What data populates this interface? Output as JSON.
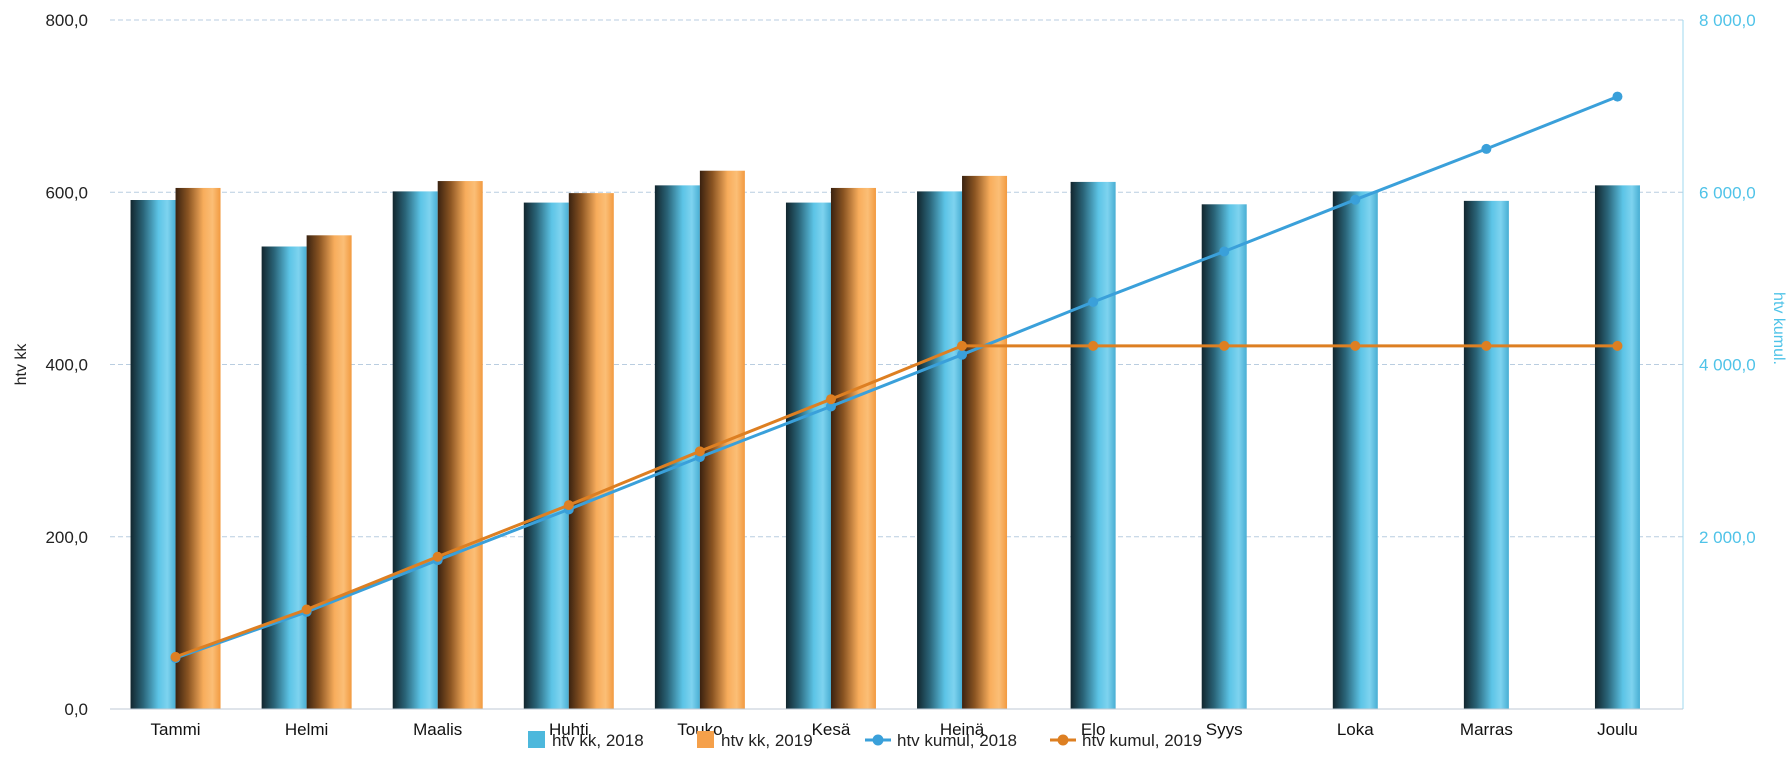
{
  "chart_data": {
    "type": "bar",
    "categories": [
      "Tammi",
      "Helmi",
      "Maalis",
      "Huhti",
      "Touko",
      "Kesä",
      "Heinä",
      "Elo",
      "Syys",
      "Loka",
      "Marras",
      "Joulu"
    ],
    "y_left": {
      "label": "htv kk",
      "ylim": [
        0,
        800
      ],
      "ticks": [
        0,
        200,
        400,
        600,
        800
      ],
      "tick_labels": [
        "0,0",
        "200,0",
        "400,0",
        "600,0",
        "800,0"
      ]
    },
    "y_right": {
      "label": "htv kumul.",
      "ylim": [
        0,
        8000
      ],
      "ticks": [
        2000,
        4000,
        6000,
        8000
      ],
      "tick_labels": [
        "2 000,0",
        "4 000,0",
        "6 000,0",
        "8 000,0"
      ]
    },
    "series": [
      {
        "name": "htv kk, 2018",
        "type": "bar",
        "axis": "left",
        "color": "#4db8dc",
        "values": [
          591,
          537,
          601,
          588,
          608,
          588,
          601,
          612,
          586,
          601,
          590,
          608
        ]
      },
      {
        "name": "htv kk, 2019",
        "type": "bar",
        "axis": "left",
        "color": "#f5a04a",
        "values": [
          605,
          550,
          613,
          599,
          625,
          605,
          619,
          null,
          null,
          null,
          null,
          null
        ]
      },
      {
        "name": "htv kumul, 2018",
        "type": "line",
        "axis": "right",
        "color": "#3aa0da",
        "values": [
          591,
          1128,
          1729,
          2317,
          2925,
          3513,
          4114,
          4726,
          5312,
          5913,
          6503,
          7111
        ]
      },
      {
        "name": "htv kumul, 2019",
        "type": "line",
        "axis": "right",
        "color": "#dd7f22",
        "values": [
          605,
          1155,
          1768,
          2367,
          2992,
          3597,
          4216,
          4216,
          4216,
          4216,
          4216,
          4216
        ]
      }
    ],
    "grid": true,
    "legend_position": "bottom"
  }
}
